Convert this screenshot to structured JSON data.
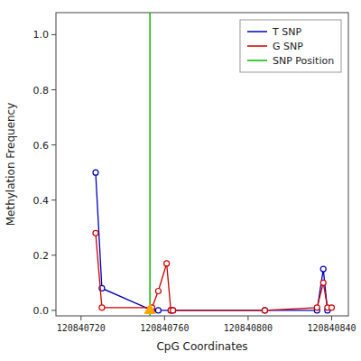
{
  "chart_data": {
    "type": "line",
    "xlabel": "CpG Coordinates",
    "ylabel": "Methylation Frequency",
    "series": [
      {
        "name": "T SNP",
        "color": "#0000BB",
        "marker": "circle",
        "x": [
          120840727,
          120840730,
          120840754,
          120840757,
          120840763,
          120840764,
          120840808,
          120840833,
          120840836,
          120840838
        ],
        "values": [
          0.5,
          0.08,
          0.0,
          0.0,
          0.0,
          0.0,
          0.0,
          0.0,
          0.15,
          0.0
        ]
      },
      {
        "name": "G SNP",
        "color": "#CC0000",
        "marker": "circle",
        "x": [
          120840727,
          120840730,
          120840754,
          120840757,
          120840761,
          120840763,
          120840764,
          120840808,
          120840833,
          120840836,
          120840838,
          120840840
        ],
        "values": [
          0.28,
          0.01,
          0.01,
          0.07,
          0.17,
          0.0,
          0.0,
          0.0,
          0.01,
          0.1,
          0.01,
          0.01
        ]
      },
      {
        "name": "SNP Position",
        "type": "vline",
        "color": "#00BB00",
        "x": [
          120840753
        ]
      },
      {
        "type": "scatter",
        "color": "#FFA500",
        "marker": "triangle",
        "x": [
          120840753
        ],
        "values": [
          0.0
        ]
      }
    ],
    "xlim": [
      120840708,
      120840848
    ],
    "ylim": [
      -0.02,
      1.08
    ],
    "xticks": [
      120840720,
      120840760,
      120840800,
      120840840
    ],
    "yticks": [
      {
        "value": 0.0,
        "label": "0.0"
      },
      0.2,
      0.4,
      0.6,
      0.8,
      {
        "value": 1.0,
        "label": "1.0"
      }
    ],
    "grid": false,
    "legend": "upper right"
  }
}
